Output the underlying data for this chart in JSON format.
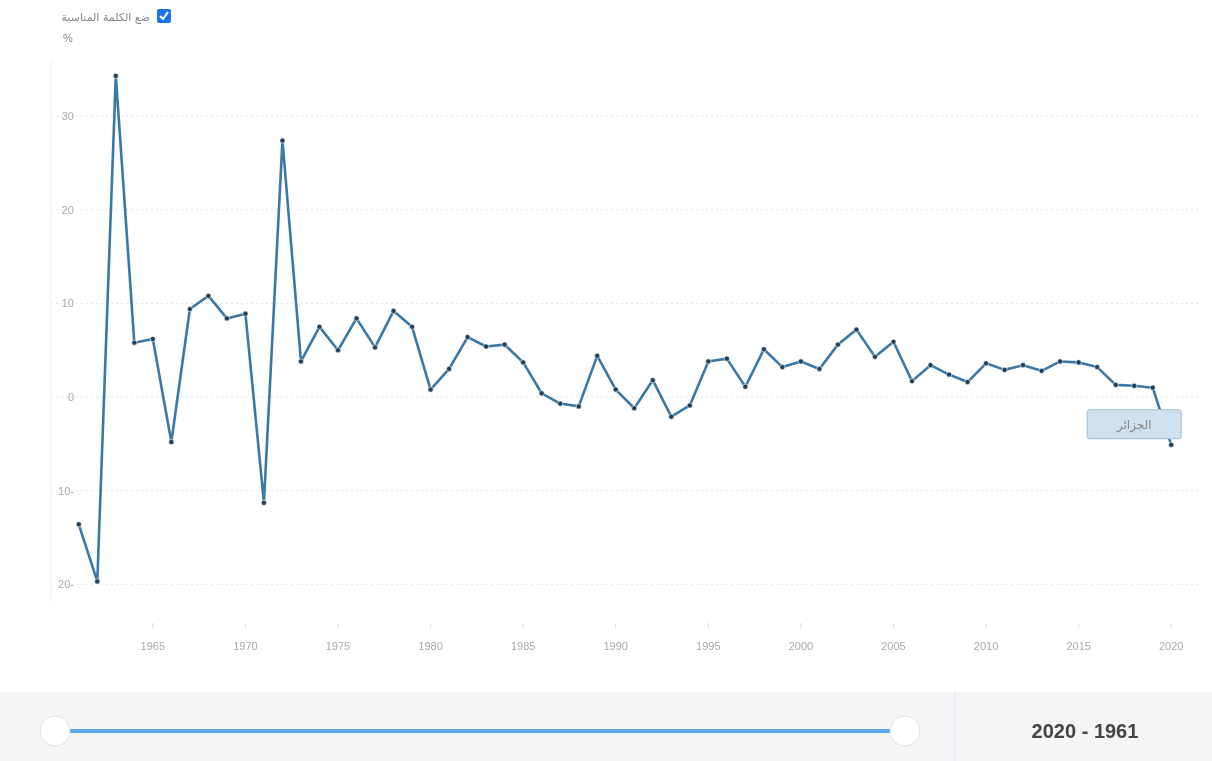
{
  "chart_data": {
    "type": "line",
    "ylabel": "%",
    "x": [
      1961,
      1962,
      1963,
      1964,
      1965,
      1966,
      1967,
      1968,
      1969,
      1970,
      1971,
      1972,
      1973,
      1974,
      1975,
      1976,
      1977,
      1978,
      1979,
      1980,
      1981,
      1982,
      1983,
      1984,
      1985,
      1986,
      1987,
      1988,
      1989,
      1990,
      1991,
      1992,
      1993,
      1994,
      1995,
      1996,
      1997,
      1998,
      1999,
      2000,
      2001,
      2002,
      2003,
      2004,
      2005,
      2006,
      2007,
      2008,
      2009,
      2010,
      2011,
      2012,
      2013,
      2014,
      2015,
      2016,
      2017,
      2018,
      2019,
      2020
    ],
    "series": [
      {
        "name": "الجزائر",
        "color": "#3a78a8",
        "values": [
          -13.6,
          -19.7,
          34.3,
          5.8,
          6.2,
          -4.8,
          9.4,
          10.8,
          8.4,
          8.9,
          -11.3,
          27.4,
          3.8,
          7.5,
          5.0,
          8.4,
          5.3,
          9.2,
          7.5,
          0.8,
          3.0,
          6.4,
          5.4,
          5.6,
          3.7,
          0.4,
          -0.7,
          -1.0,
          4.4,
          0.8,
          -1.2,
          1.8,
          -2.1,
          -0.9,
          3.8,
          4.1,
          1.1,
          5.1,
          3.2,
          3.8,
          3.0,
          5.6,
          7.2,
          4.3,
          5.9,
          1.7,
          3.4,
          2.4,
          1.6,
          3.6,
          2.9,
          3.4,
          2.8,
          3.8,
          3.7,
          3.2,
          1.3,
          1.2,
          1.0,
          -5.1
        ]
      }
    ],
    "xlim": [
      1959.5,
      2021.5
    ],
    "xticks": [
      1965,
      1970,
      1975,
      1980,
      1985,
      1990,
      1995,
      2000,
      2005,
      2010,
      2015,
      2020
    ],
    "ylim": [
      -22,
      36
    ],
    "yticks": [
      {
        "value": -20,
        "label": "20-"
      },
      {
        "value": -10,
        "label": "10-"
      },
      0,
      10,
      20,
      30
    ],
    "grid": "y",
    "marker": "circle",
    "line_style": "solid",
    "annotations": [
      "ضع الكلمة المناسبة",
      "2020 - 1961"
    ]
  }
}
